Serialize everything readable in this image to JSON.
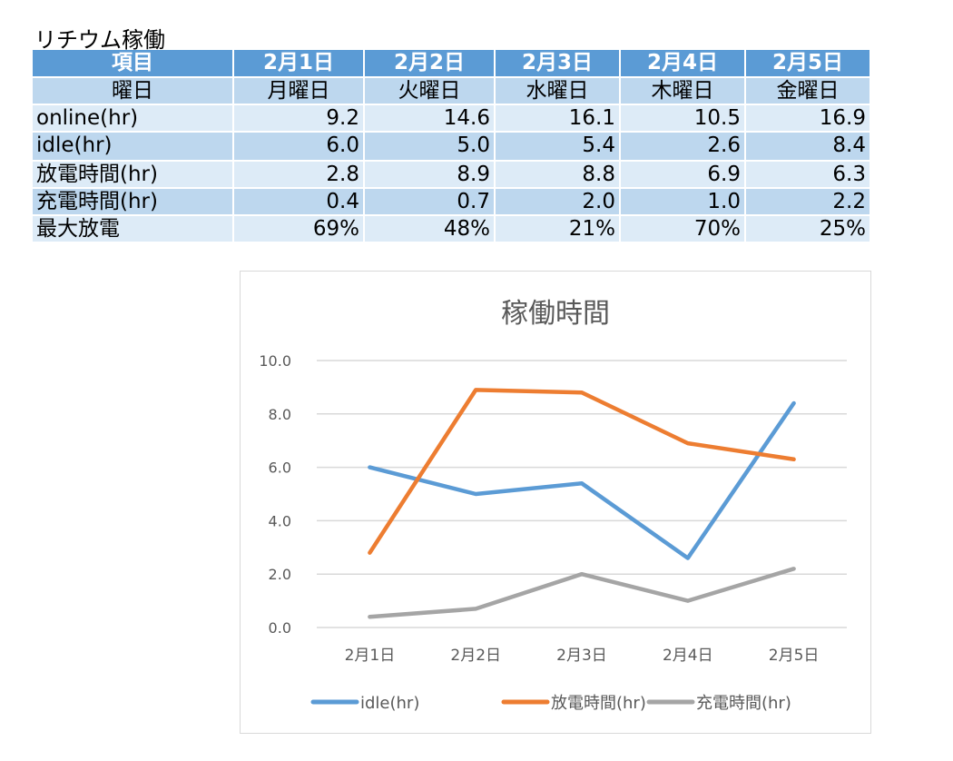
{
  "title": "リチウム稼働",
  "table": {
    "header": [
      "項目",
      "2月1日",
      "2月2日",
      "2月3日",
      "2月4日",
      "2月5日"
    ],
    "rows": [
      [
        "曜日",
        "月曜日",
        "火曜日",
        "水曜日",
        "木曜日",
        "金曜日"
      ],
      [
        "online(hr)",
        "9.2",
        "14.6",
        "16.1",
        "10.5",
        "16.9"
      ],
      [
        "idle(hr)",
        "6.0",
        "5.0",
        "5.4",
        "2.6",
        "8.4"
      ],
      [
        "放電時間(hr)",
        "2.8",
        "8.9",
        "8.8",
        "6.9",
        "6.3"
      ],
      [
        "充電時間(hr)",
        "0.4",
        "0.7",
        "2.0",
        "1.0",
        "2.2"
      ],
      [
        "最大放電",
        "69%",
        "48%",
        "21%",
        "70%",
        "25%"
      ]
    ]
  },
  "chart_data": {
    "type": "line",
    "title": "稼働時間",
    "categories": [
      "2月1日",
      "2月2日",
      "2月3日",
      "2月4日",
      "2月5日"
    ],
    "series": [
      {
        "name": "idle(hr)",
        "values": [
          6.0,
          5.0,
          5.4,
          2.6,
          8.4
        ],
        "color": "#5b9bd5"
      },
      {
        "name": "放電時間(hr)",
        "values": [
          2.8,
          8.9,
          8.8,
          6.9,
          6.3
        ],
        "color": "#ed7d31"
      },
      {
        "name": "充電時間(hr)",
        "values": [
          0.4,
          0.7,
          2.0,
          1.0,
          2.2
        ],
        "color": "#a5a5a5"
      }
    ],
    "ylim": [
      0,
      10
    ],
    "yticks": [
      "0.0",
      "2.0",
      "4.0",
      "6.0",
      "8.0",
      "10.0"
    ],
    "grid": true,
    "legend": "bottom"
  }
}
